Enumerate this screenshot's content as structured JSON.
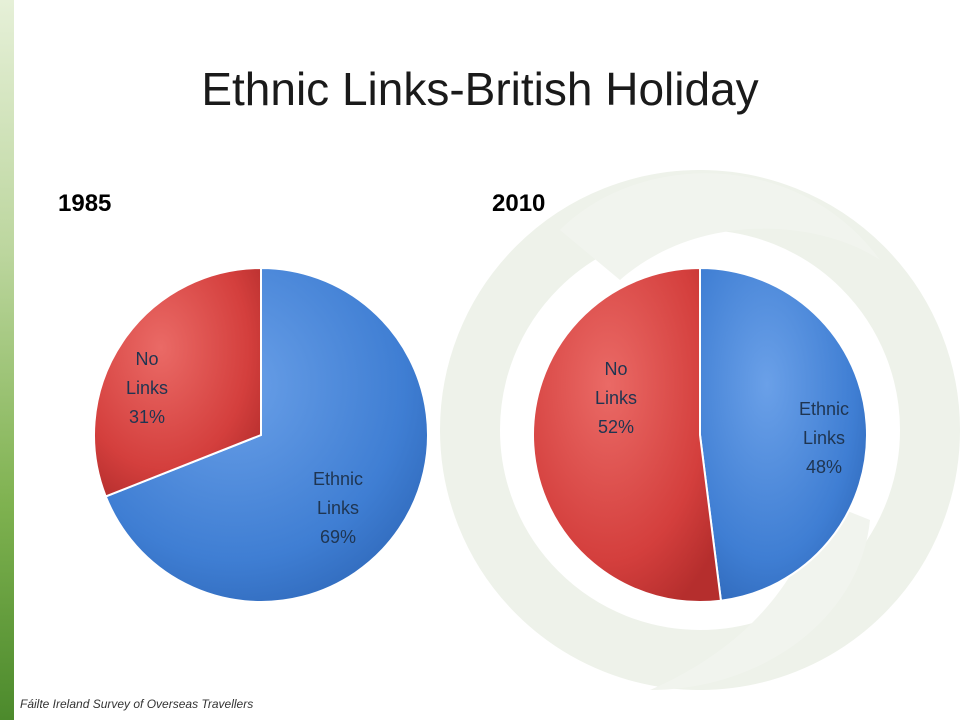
{
  "slide": {
    "title": "Ethnic Links-British Holiday",
    "source": "Fáilte Ireland Survey of Overseas Travellers"
  },
  "colors": {
    "ethnic_links": "#4a86d8",
    "no_links": "#d94343",
    "label_text": "#1f3551",
    "accent_green": "#5a9a33"
  },
  "chart_data": [
    {
      "type": "pie",
      "title": "1985",
      "slices": [
        {
          "label": "Ethnic Links",
          "value": 69,
          "display": [
            "Ethnic",
            "Links",
            "69%"
          ]
        },
        {
          "label": "No Links",
          "value": 31,
          "display": [
            "No",
            "Links",
            "31%"
          ]
        }
      ]
    },
    {
      "type": "pie",
      "title": "2010",
      "slices": [
        {
          "label": "Ethnic Links",
          "value": 48,
          "display": [
            "Ethnic",
            "Links",
            "48%"
          ]
        },
        {
          "label": "No Links",
          "value": 52,
          "display": [
            "No",
            "Links",
            "52%"
          ]
        }
      ]
    }
  ]
}
